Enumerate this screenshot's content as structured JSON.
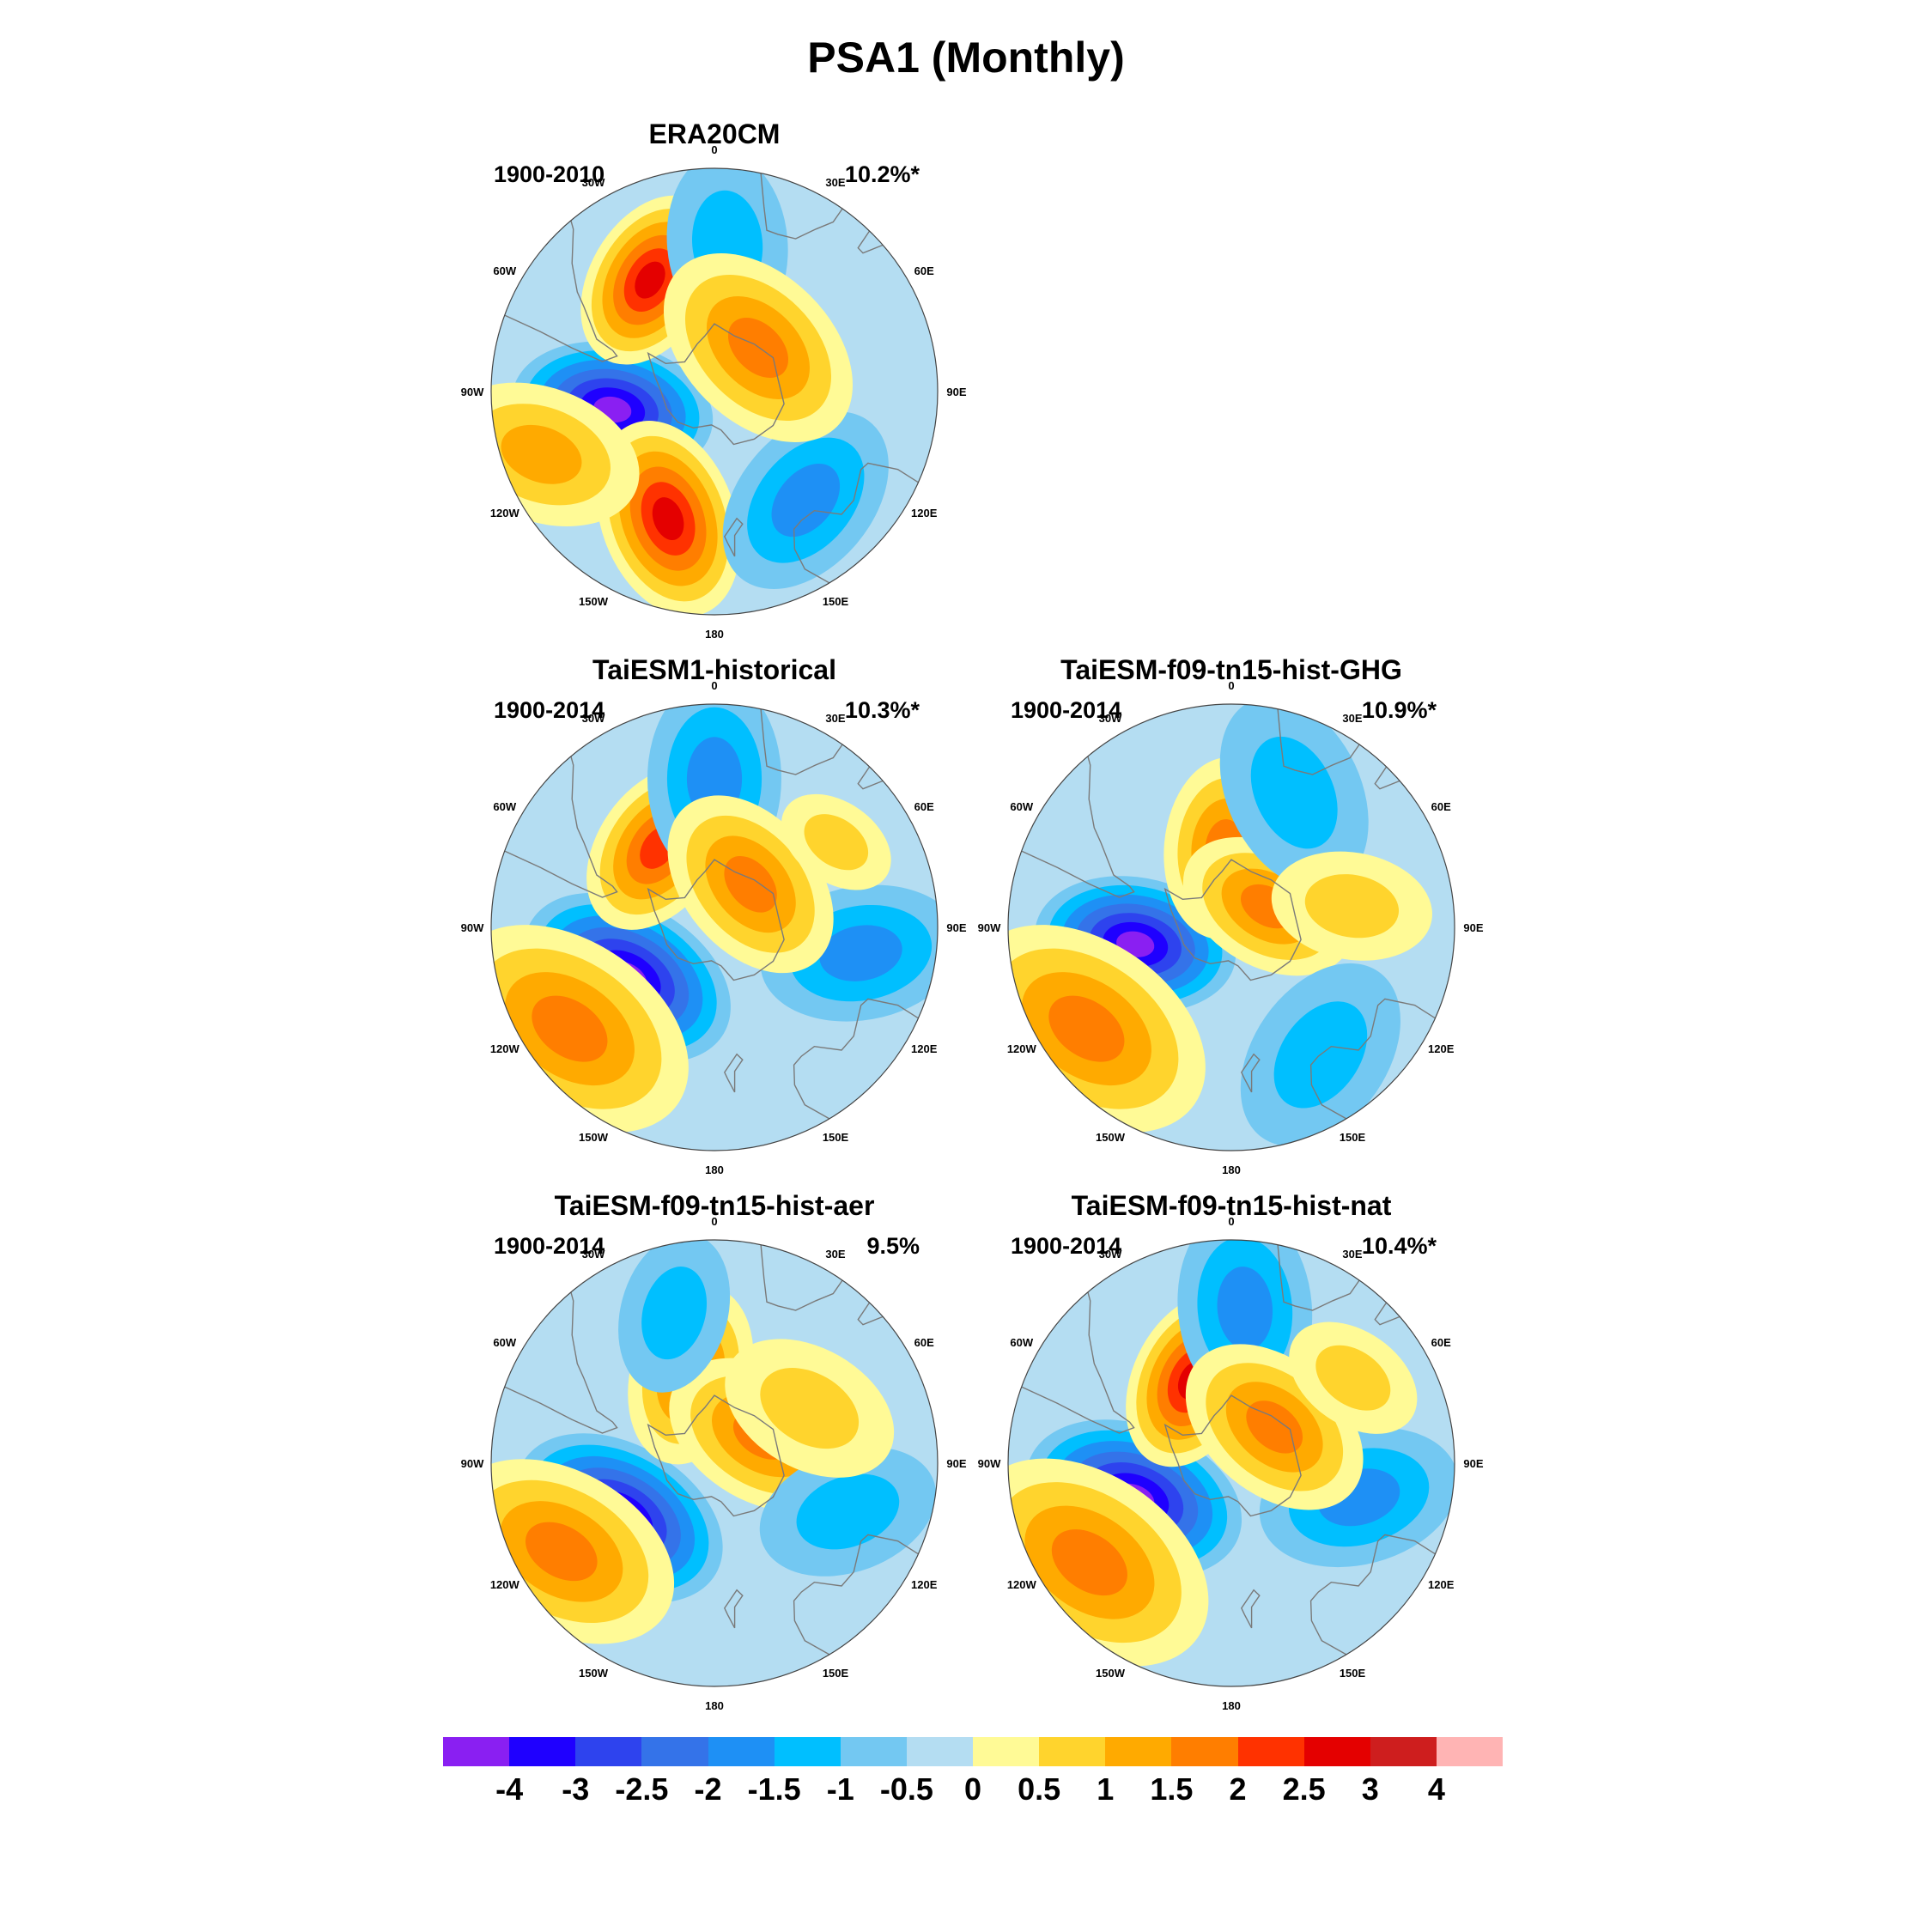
{
  "title": "PSA1 (Monthly)",
  "panels": [
    {
      "id": "era20cm",
      "title": "ERA20CM",
      "period": "1900-2010",
      "variance": "10.2%*",
      "anomalies": [
        {
          "lat": -54,
          "lon": -100,
          "level": -4,
          "spread": 1.0
        },
        {
          "lat": -46,
          "lon": -30,
          "level": 2.5,
          "spread": 0.9
        },
        {
          "lat": -44,
          "lon": -160,
          "level": 2.5,
          "spread": 1.0
        },
        {
          "lat": -42,
          "lon": 140,
          "level": -1.5,
          "spread": 1.0
        },
        {
          "lat": -40,
          "lon": 5,
          "level": -1,
          "spread": 0.9
        },
        {
          "lat": -68,
          "lon": 45,
          "level": 1.5,
          "spread": 1.1
        },
        {
          "lat": -30,
          "lon": -110,
          "level": 1,
          "spread": 1.0
        }
      ]
    },
    {
      "id": "taiesm1-historical",
      "title": "TaiESM1-historical",
      "period": "1900-2014",
      "variance": "10.3%*",
      "anomalies": [
        {
          "lat": -55,
          "lon": -120,
          "level": -4,
          "spread": 1.1
        },
        {
          "lat": -56,
          "lon": -35,
          "level": 2,
          "spread": 0.9
        },
        {
          "lat": -32,
          "lon": -125,
          "level": 1.5,
          "spread": 1.3
        },
        {
          "lat": -40,
          "lon": 100,
          "level": -1.5,
          "spread": 1.0
        },
        {
          "lat": -40,
          "lon": 0,
          "level": -1.5,
          "spread": 1.0
        },
        {
          "lat": -70,
          "lon": 40,
          "level": 1.5,
          "spread": 1.0
        },
        {
          "lat": -40,
          "lon": 55,
          "level": 0.5,
          "spread": 0.6
        }
      ]
    },
    {
      "id": "hist-ghg",
      "title": "TaiESM-f09-tn15-hist-GHG",
      "period": "1900-2014",
      "variance": "10.9%*",
      "anomalies": [
        {
          "lat": -56,
          "lon": -100,
          "level": -4,
          "spread": 1.0
        },
        {
          "lat": -62,
          "lon": -5,
          "level": 1.5,
          "spread": 0.9
        },
        {
          "lat": -75,
          "lon": 60,
          "level": 1.5,
          "spread": 0.9
        },
        {
          "lat": -32,
          "lon": -125,
          "level": 1.5,
          "spread": 1.3
        },
        {
          "lat": -38,
          "lon": 145,
          "level": -1,
          "spread": 1.0
        },
        {
          "lat": -40,
          "lon": 25,
          "level": -1,
          "spread": 1.0
        },
        {
          "lat": -48,
          "lon": 80,
          "level": 0.5,
          "spread": 0.8
        }
      ]
    },
    {
      "id": "hist-aer",
      "title": "TaiESM-f09-tn15-hist-aer",
      "period": "1900-2014",
      "variance": "9.5%",
      "anomalies": [
        {
          "lat": -52,
          "lon": -120,
          "level": -4,
          "spread": 1.1
        },
        {
          "lat": -58,
          "lon": -15,
          "level": 1.5,
          "spread": 0.9
        },
        {
          "lat": -70,
          "lon": 60,
          "level": 1.5,
          "spread": 1.0
        },
        {
          "lat": -32,
          "lon": -120,
          "level": 1.5,
          "spread": 1.2
        },
        {
          "lat": -42,
          "lon": 110,
          "level": -1,
          "spread": 0.9
        },
        {
          "lat": -38,
          "lon": -15,
          "level": -1,
          "spread": 0.8
        },
        {
          "lat": -52,
          "lon": 60,
          "level": 0.5,
          "spread": 0.9
        }
      ]
    },
    {
      "id": "hist-nat",
      "title": "TaiESM-f09-tn15-hist-nat",
      "period": "1900-2014",
      "variance": "10.4%*",
      "anomalies": [
        {
          "lat": -54,
          "lon": -110,
          "level": -4,
          "spread": 1.1
        },
        {
          "lat": -58,
          "lon": -25,
          "level": 2.5,
          "spread": 0.9
        },
        {
          "lat": -33,
          "lon": -125,
          "level": 1.5,
          "spread": 1.3
        },
        {
          "lat": -45,
          "lon": 105,
          "level": -1.5,
          "spread": 1.0
        },
        {
          "lat": -38,
          "lon": 5,
          "level": -1.5,
          "spread": 1.0
        },
        {
          "lat": -70,
          "lon": 50,
          "level": 1.5,
          "spread": 1.0
        },
        {
          "lat": -40,
          "lon": 55,
          "level": 0.5,
          "spread": 0.7
        }
      ]
    }
  ],
  "longitude_labels": [
    "0",
    "30E",
    "60E",
    "90E",
    "120E",
    "150E",
    "180",
    "150W",
    "120W",
    "90W",
    "60W",
    "30W"
  ],
  "map": {
    "projection": "south-polar-stereographic",
    "outer_latitude": -20,
    "background_level": -0.5
  },
  "colorbar": {
    "labels": [
      "-4",
      "-3",
      "-2.5",
      "-2",
      "-1.5",
      "-1",
      "-0.5",
      "0",
      "0.5",
      "1",
      "1.5",
      "2",
      "2.5",
      "3",
      "4"
    ],
    "colors": [
      "#8a1ff2",
      "#1f00ff",
      "#2e43ee",
      "#3473e9",
      "#1e90f5",
      "#00bfff",
      "#73c8f2",
      "#b4ddf2",
      "#fffa96",
      "#ffd42d",
      "#ffaa00",
      "#ff7e00",
      "#ff3200",
      "#e40000",
      "#ce1e1e",
      "#ffb4b4"
    ]
  }
}
